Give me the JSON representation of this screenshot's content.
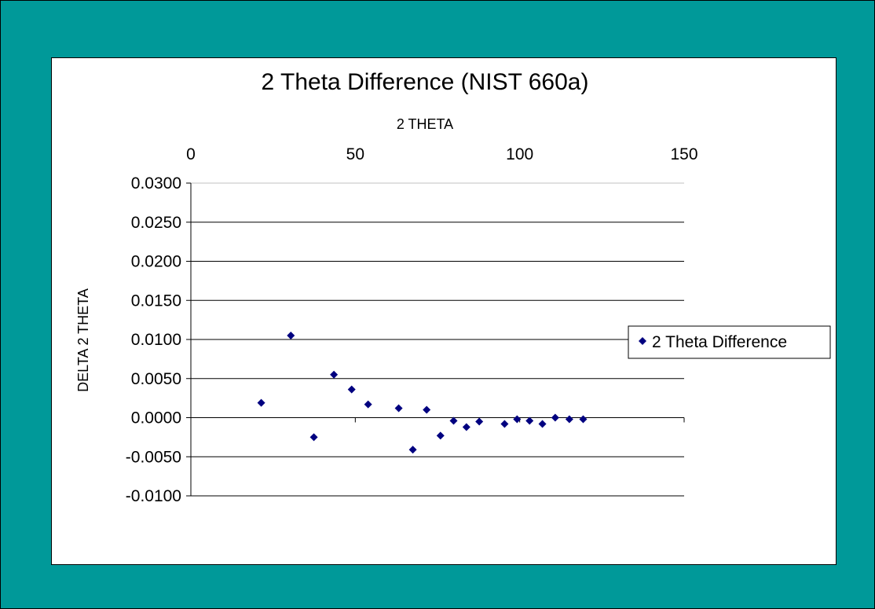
{
  "colors": {
    "background": "#009999",
    "chart_area": "#ffffff",
    "marker": "#000080",
    "gridline": "#000000",
    "minor_gridline": "#c0c0c0"
  },
  "chart_data": {
    "type": "scatter",
    "title": "2 Theta Difference (NIST 660a)",
    "xlabel": "2 THETA",
    "ylabel": "DELTA 2 THETA",
    "x_axis_position": "top",
    "xlim": [
      0,
      150
    ],
    "ylim": [
      -0.01,
      0.03
    ],
    "x_ticks": [
      0,
      50,
      100,
      150
    ],
    "x_tick_labels": [
      "0",
      "50",
      "100",
      "150"
    ],
    "y_ticks": [
      -0.01,
      -0.005,
      0,
      0.005,
      0.01,
      0.015,
      0.02,
      0.025,
      0.03
    ],
    "y_tick_labels": [
      "-0.0100",
      "-0.0050",
      "0.0000",
      "0.0050",
      "0.0100",
      "0.0150",
      "0.0200",
      "0.0250",
      "0.0300"
    ],
    "grid": true,
    "legend_position": "right",
    "marker": "diamond",
    "series": [
      {
        "name": "2 Theta Difference",
        "points": [
          {
            "x": 21.4,
            "y": 0.0019
          },
          {
            "x": 30.4,
            "y": 0.0105
          },
          {
            "x": 37.4,
            "y": -0.0025
          },
          {
            "x": 43.5,
            "y": 0.0055
          },
          {
            "x": 48.9,
            "y": 0.0036
          },
          {
            "x": 53.9,
            "y": 0.0017
          },
          {
            "x": 63.2,
            "y": 0.0012
          },
          {
            "x": 67.5,
            "y": -0.0041
          },
          {
            "x": 71.7,
            "y": 0.001
          },
          {
            "x": 75.9,
            "y": -0.0023
          },
          {
            "x": 79.9,
            "y": -0.0004
          },
          {
            "x": 83.8,
            "y": -0.0012
          },
          {
            "x": 87.7,
            "y": -0.0005
          },
          {
            "x": 95.4,
            "y": -0.0008
          },
          {
            "x": 99.2,
            "y": -0.0002
          },
          {
            "x": 103.0,
            "y": -0.0004
          },
          {
            "x": 106.9,
            "y": -0.0008
          },
          {
            "x": 110.8,
            "y": 0.0
          },
          {
            "x": 115.1,
            "y": -0.0002
          },
          {
            "x": 119.3,
            "y": -0.0002
          }
        ]
      }
    ]
  }
}
